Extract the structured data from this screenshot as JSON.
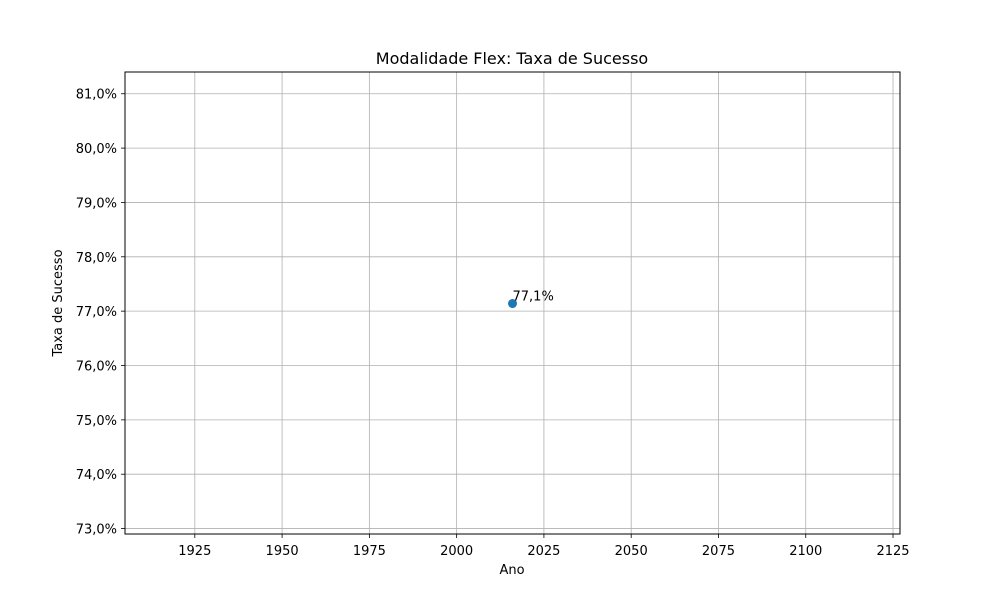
{
  "chart_data": {
    "type": "scatter",
    "title": "Modalidade Flex: Taxa de Sucesso",
    "xlabel": "Ano",
    "ylabel": "Taxa de Sucesso",
    "xlim": [
      1905,
      2127
    ],
    "ylim": [
      72.9,
      81.4
    ],
    "xticks": [
      1925,
      1950,
      1975,
      2000,
      2025,
      2050,
      2075,
      2100,
      2125
    ],
    "xtick_labels": [
      "1925",
      "1950",
      "1975",
      "2000",
      "2025",
      "2050",
      "2075",
      "2100",
      "2125"
    ],
    "yticks": [
      73,
      74,
      75,
      76,
      77,
      78,
      79,
      80,
      81
    ],
    "ytick_labels": [
      "73,0%",
      "74,0%",
      "75,0%",
      "76,0%",
      "77,0%",
      "78,0%",
      "79,0%",
      "80,0%",
      "81,0%"
    ],
    "grid": true,
    "series": [
      {
        "x": [
          2016
        ],
        "y": [
          77.14
        ],
        "labels": [
          "77,1%"
        ],
        "color": "#1f77b4"
      }
    ]
  }
}
